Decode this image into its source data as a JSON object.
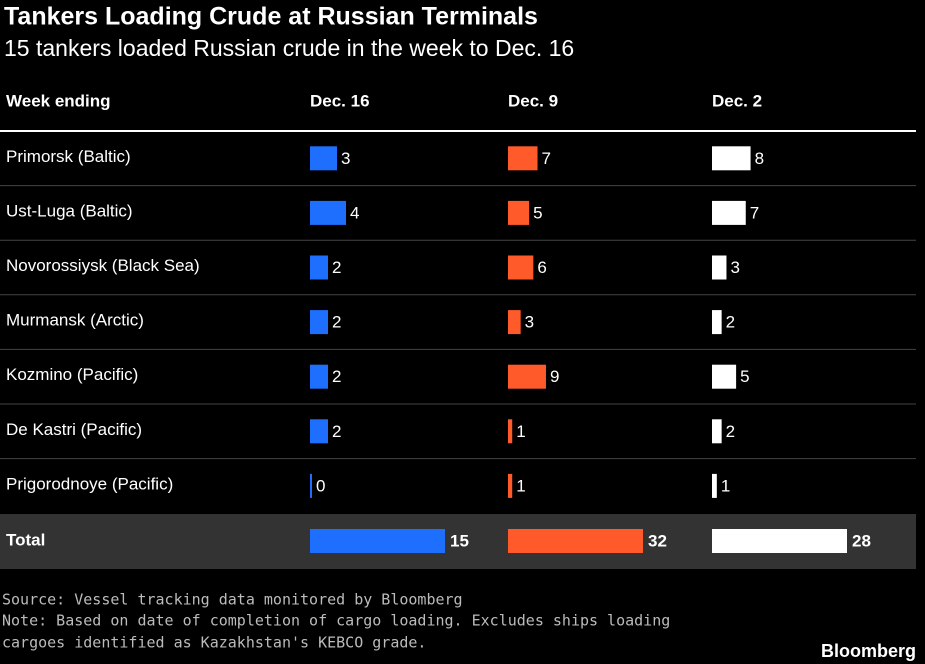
{
  "chart_data": {
    "type": "bar",
    "title": "Tankers Loading Crude at Russian Terminals",
    "subtitle": "15 tankers loaded Russian crude in the week to Dec. 16",
    "header": "Week ending",
    "categories": [
      "Primorsk (Baltic)",
      "Ust-Luga (Baltic)",
      "Novorossiysk (Black Sea)",
      "Murmansk (Arctic)",
      "Kozmino (Pacific)",
      "De Kastri (Pacific)",
      "Prigorodnoye (Pacific)"
    ],
    "total_label": "Total",
    "series": [
      {
        "name": "Dec. 16",
        "color": "#1f6fff",
        "values": [
          3,
          4,
          2,
          2,
          2,
          2,
          0
        ],
        "total": 15
      },
      {
        "name": "Dec. 9",
        "color": "#ff5a2a",
        "values": [
          7,
          5,
          6,
          3,
          9,
          1,
          1
        ],
        "total": 32
      },
      {
        "name": "Dec. 2",
        "color": "#ffffff",
        "values": [
          8,
          7,
          3,
          2,
          5,
          2,
          1
        ],
        "total": 28
      }
    ],
    "source": "Source: Vessel tracking data monitored by Bloomberg",
    "note": [
      "Note: Based on date of completion of cargo loading. Excludes ships loading",
      "cargoes identified as Kazakhstan's KEBCO grade."
    ],
    "brand": "Bloomberg"
  }
}
